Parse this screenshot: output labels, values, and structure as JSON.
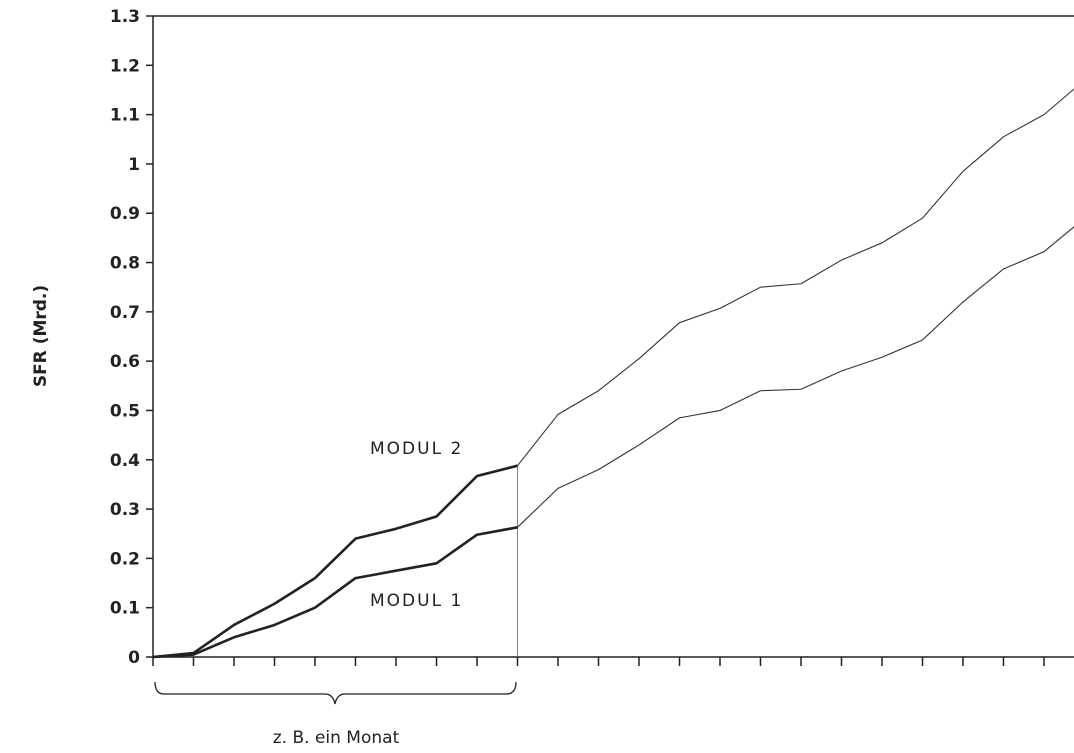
{
  "chart_data": {
    "type": "line",
    "ylabel": "SFR (Mrd.)",
    "ylim": [
      0,
      1.3
    ],
    "yticks": [
      "0",
      "0.1",
      "0.2",
      "0.3",
      "0.4",
      "0.5",
      "0.6",
      "0.7",
      "0.8",
      "0.9",
      "1",
      "1.1",
      "1.2",
      "1.3"
    ],
    "x": [
      0,
      1,
      2,
      3,
      4,
      5,
      6,
      7,
      8,
      9,
      10,
      11,
      12,
      13,
      14,
      15,
      16,
      17,
      18,
      19,
      20,
      21,
      22,
      23
    ],
    "xlim": [
      0,
      23
    ],
    "highlight_until_x": 9,
    "series": [
      {
        "name": "MODUL 1",
        "values": [
          0,
          0.005,
          0.04,
          0.065,
          0.1,
          0.16,
          0.175,
          0.19,
          0.248,
          0.263,
          0.342,
          0.38,
          0.43,
          0.485,
          0.5,
          0.54,
          0.543,
          0.58,
          0.608,
          0.643,
          0.72,
          0.787,
          0.822,
          0.89
        ]
      },
      {
        "name": "MODUL 2",
        "values": [
          0,
          0.008,
          0.065,
          0.108,
          0.16,
          0.24,
          0.26,
          0.285,
          0.367,
          0.388,
          0.492,
          0.54,
          0.605,
          0.678,
          0.707,
          0.75,
          0.757,
          0.805,
          0.84,
          0.89,
          0.985,
          1.055,
          1.1,
          1.17
        ]
      }
    ],
    "annotation": "z. B. ein Monat"
  }
}
